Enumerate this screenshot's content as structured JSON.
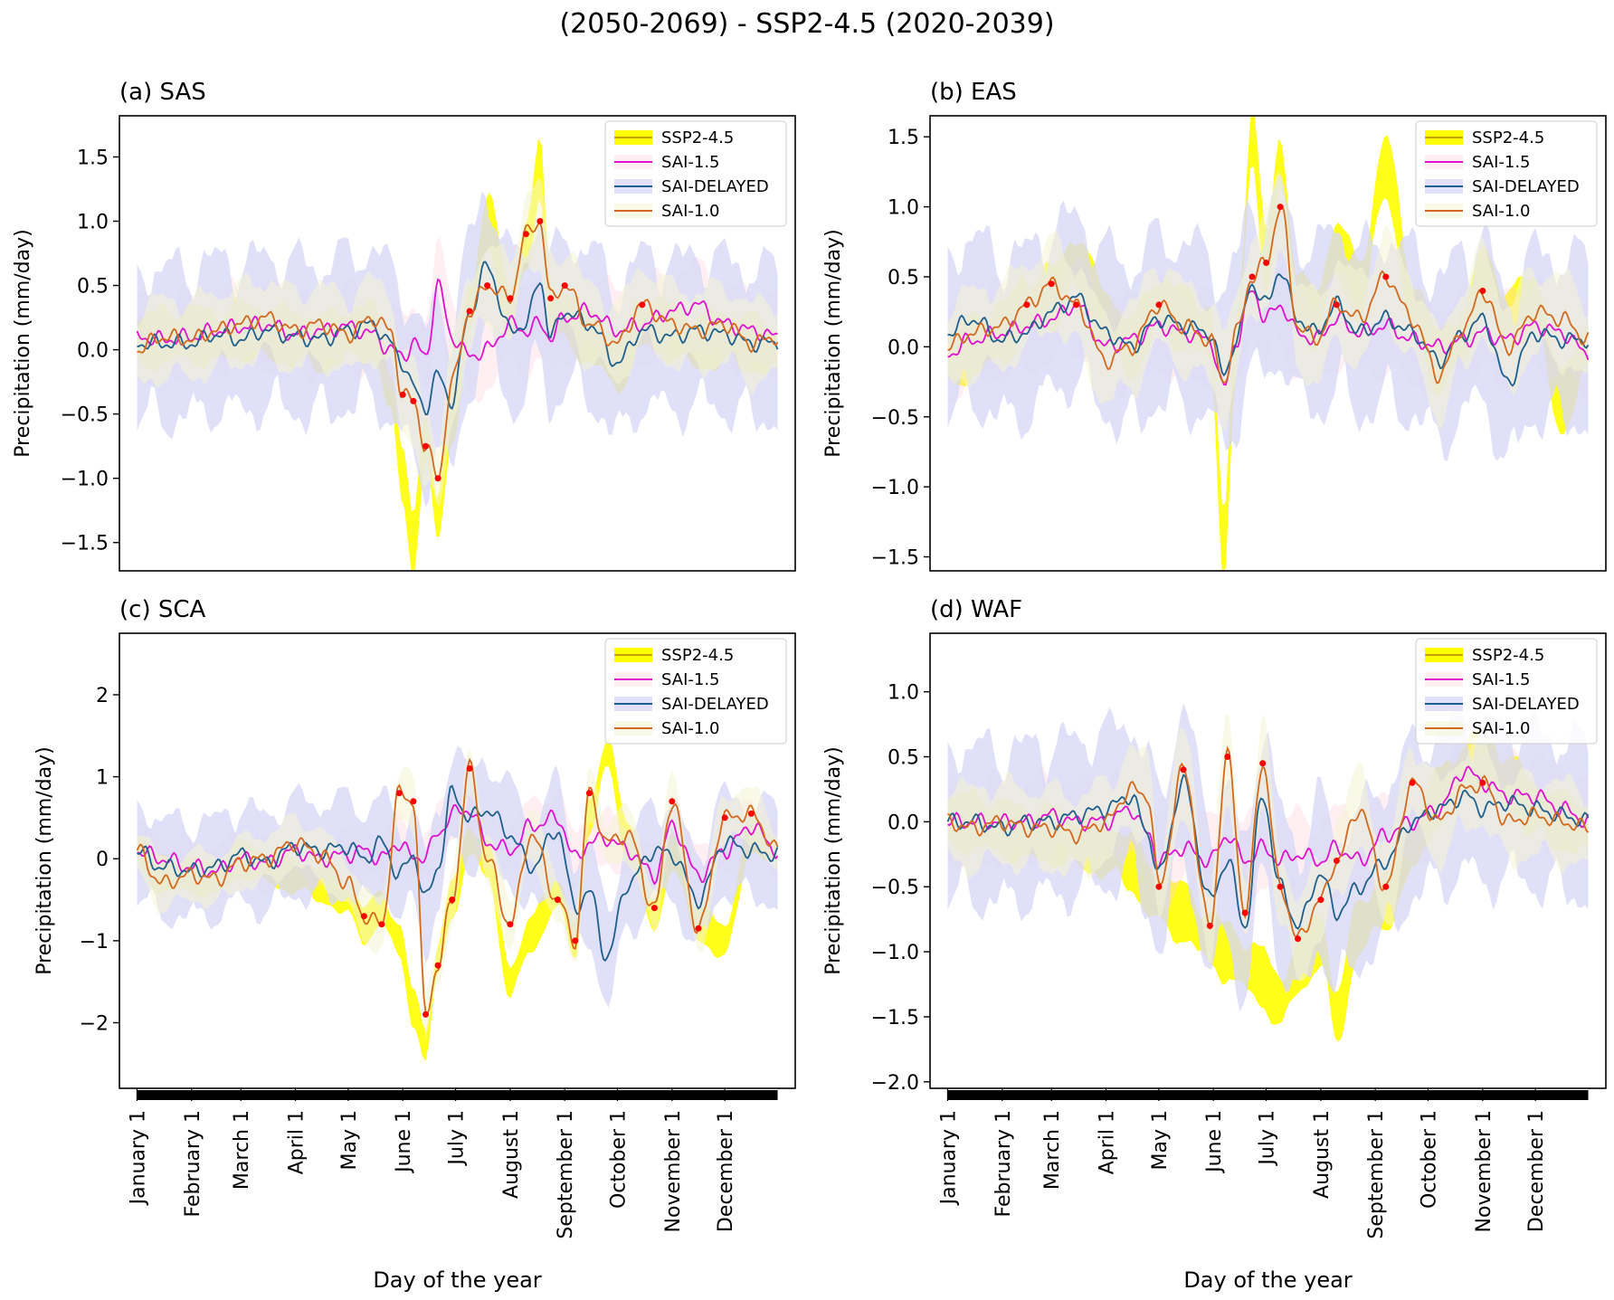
{
  "figure_title": "(2050-2069) - SSP2-4.5 (2020-2039)",
  "colors": {
    "ssp": "#ffff00",
    "sai15": "#e010d0",
    "saidelayed": "#1f5f8b",
    "sai10": "#d2691e",
    "marker": "#ff0000",
    "band_ssp": "#ffff00",
    "band_sai15": "#ffd0dc",
    "band_saidelayed": "#d8d8f6",
    "band_sai10": "#f4f4d4"
  },
  "chart_data": [
    {
      "id": "SAS",
      "type": "line",
      "title": "(a) SAS",
      "xlabel": "",
      "ylabel": "Precipitation (mm/day)",
      "ylim": [
        -1.72,
        1.82
      ],
      "yticks": [
        -1.5,
        -1.0,
        -0.5,
        0.0,
        0.5,
        1.0,
        1.5
      ],
      "ytick_labels": [
        "−1.5",
        "−1.0",
        "−0.5",
        "0.0",
        "0.5",
        "1.0",
        "1.5"
      ],
      "legend": [
        "SSP2-4.5",
        "SAI-1.5",
        "SAI-DELAYED",
        "SAI-1.0"
      ],
      "legend_loc": "upper right",
      "x": [
        1,
        15,
        32,
        46,
        60,
        74,
        91,
        105,
        121,
        135,
        145,
        152,
        158,
        165,
        172,
        180,
        190,
        200,
        213,
        222,
        230,
        236,
        244,
        258,
        274,
        288,
        305,
        319,
        335,
        350,
        365
      ],
      "series": [
        {
          "name": "SSP2-4.5",
          "values": [
            0.05,
            0.1,
            0.12,
            0.1,
            0.15,
            0.12,
            0.1,
            0.05,
            0.12,
            0.15,
            -0.3,
            -1.0,
            -1.5,
            -0.7,
            -1.3,
            -0.5,
            0.3,
            1.0,
            0.3,
            0.8,
            1.4,
            0.3,
            0.25,
            0.1,
            -0.1,
            0.2,
            0.15,
            0.05,
            0.1,
            0.05,
            0.0
          ]
        },
        {
          "name": "SAI-1.5",
          "values": [
            0.1,
            0.08,
            0.1,
            0.15,
            0.18,
            0.2,
            0.12,
            0.15,
            0.18,
            0.12,
            0.0,
            -0.05,
            0.05,
            -0.05,
            0.5,
            0.1,
            -0.05,
            0.0,
            0.2,
            0.15,
            0.2,
            0.1,
            0.25,
            0.3,
            0.15,
            0.2,
            0.3,
            0.35,
            0.2,
            0.15,
            0.1
          ]
        },
        {
          "name": "SAI-DELAYED",
          "values": [
            0.05,
            0.05,
            0.05,
            0.12,
            0.08,
            0.15,
            0.1,
            0.08,
            0.15,
            0.2,
            0.05,
            -0.1,
            -0.3,
            -0.45,
            -0.2,
            -0.4,
            0.3,
            0.65,
            0.15,
            0.2,
            0.55,
            0.1,
            0.3,
            0.2,
            -0.1,
            0.15,
            0.1,
            0.15,
            0.12,
            0.05,
            0.05
          ]
        },
        {
          "name": "SAI-1.0",
          "values": [
            0.0,
            0.1,
            0.08,
            0.15,
            0.2,
            0.25,
            0.15,
            0.2,
            0.12,
            0.25,
            0.15,
            -0.35,
            -0.4,
            -0.75,
            -1.0,
            -0.25,
            0.3,
            0.5,
            0.4,
            0.9,
            1.0,
            0.4,
            0.5,
            0.2,
            0.05,
            0.35,
            0.2,
            0.15,
            0.2,
            0.05,
            0.1
          ]
        }
      ]
    },
    {
      "id": "EAS",
      "type": "line",
      "title": "(b) EAS",
      "xlabel": "",
      "ylabel": "Precipitation (mm/day)",
      "ylim": [
        -1.6,
        1.65
      ],
      "yticks": [
        -1.5,
        -1.0,
        -0.5,
        0.0,
        0.5,
        1.0,
        1.5
      ],
      "ytick_labels": [
        "−1.5",
        "−1.0",
        "−0.5",
        "0.0",
        "0.5",
        "1.0",
        "1.5"
      ],
      "legend": [
        "SSP2-4.5",
        "SAI-1.5",
        "SAI-DELAYED",
        "SAI-1.0"
      ],
      "legend_loc": "upper right",
      "x": [
        1,
        15,
        32,
        46,
        60,
        74,
        91,
        105,
        121,
        135,
        150,
        158,
        165,
        174,
        182,
        190,
        200,
        210,
        222,
        235,
        250,
        265,
        280,
        295,
        305,
        319,
        335,
        350,
        365
      ],
      "series": [
        {
          "name": "SSP2-4.5",
          "values": [
            -0.1,
            0.0,
            0.1,
            0.3,
            0.35,
            0.6,
            0.2,
            0.0,
            0.3,
            0.2,
            0.1,
            -1.4,
            0.0,
            1.5,
            0.6,
            1.3,
            0.3,
            0.2,
            0.7,
            0.4,
            1.3,
            0.3,
            -0.1,
            0.1,
            0.5,
            0.2,
            0.3,
            -0.4,
            0.0
          ]
        },
        {
          "name": "SAI-1.5",
          "values": [
            -0.05,
            0.05,
            0.1,
            0.15,
            0.2,
            0.3,
            0.0,
            0.05,
            0.15,
            0.1,
            0.05,
            -0.3,
            0.05,
            0.4,
            0.2,
            0.3,
            0.1,
            0.05,
            0.2,
            0.1,
            0.15,
            0.05,
            0.0,
            0.05,
            0.1,
            0.05,
            0.15,
            0.1,
            -0.05
          ]
        },
        {
          "name": "SAI-DELAYED",
          "values": [
            0.1,
            0.2,
            0.05,
            0.1,
            0.25,
            0.35,
            0.1,
            0.0,
            0.2,
            0.15,
            0.1,
            -0.2,
            0.05,
            0.45,
            0.3,
            0.55,
            0.2,
            0.1,
            0.3,
            0.1,
            0.2,
            0.1,
            -0.1,
            0.1,
            0.2,
            -0.25,
            0.1,
            0.05,
            0.05
          ]
        },
        {
          "name": "SAI-1.0",
          "values": [
            0.0,
            0.1,
            0.15,
            0.3,
            0.45,
            0.3,
            -0.1,
            0.0,
            0.3,
            0.15,
            0.05,
            -0.25,
            0.1,
            0.5,
            0.6,
            1.0,
            0.15,
            0.05,
            0.3,
            0.2,
            0.5,
            0.2,
            -0.2,
            0.15,
            0.4,
            0.0,
            0.25,
            0.2,
            0.05
          ]
        }
      ]
    },
    {
      "id": "SCA",
      "type": "line",
      "title": "(c) SCA",
      "xlabel": "Day of the year",
      "ylabel": "Precipitation (mm/day)",
      "ylim": [
        -2.8,
        2.75
      ],
      "yticks": [
        -2,
        -1,
        0,
        1,
        2
      ],
      "ytick_labels": [
        "−2",
        "−1",
        "0",
        "1",
        "2"
      ],
      "legend": [
        "SSP2-4.5",
        "SAI-1.5",
        "SAI-DELAYED",
        "SAI-1.0"
      ],
      "legend_loc": "upper right",
      "x": [
        1,
        15,
        32,
        46,
        60,
        74,
        91,
        105,
        121,
        130,
        140,
        150,
        158,
        165,
        172,
        180,
        190,
        200,
        213,
        225,
        240,
        250,
        258,
        268,
        280,
        295,
        305,
        320,
        335,
        350,
        365
      ],
      "series": [
        {
          "name": "SSP2-4.5",
          "values": [
            0.1,
            -0.2,
            -0.2,
            -0.25,
            0.0,
            -0.1,
            -0.2,
            -0.3,
            -0.5,
            -0.8,
            -0.6,
            -1.0,
            -1.8,
            -2.3,
            -1.2,
            -0.5,
            0.2,
            0.0,
            -1.5,
            -0.9,
            -0.4,
            -1.0,
            0.5,
            1.3,
            0.2,
            -0.7,
            0.1,
            -0.8,
            -1.0,
            0.3,
            0.1
          ]
        },
        {
          "name": "SAI-1.5",
          "values": [
            0.1,
            0.0,
            -0.1,
            -0.15,
            0.0,
            -0.05,
            0.1,
            0.0,
            0.05,
            0.1,
            0.0,
            0.2,
            0.0,
            0.05,
            0.3,
            0.55,
            0.6,
            0.2,
            0.1,
            0.4,
            0.5,
            0.0,
            0.2,
            0.25,
            0.1,
            -0.2,
            0.4,
            -0.2,
            0.1,
            0.4,
            0.1
          ]
        },
        {
          "name": "SAI-DELAYED",
          "values": [
            0.1,
            -0.1,
            -0.15,
            -0.1,
            0.05,
            -0.05,
            0.15,
            0.1,
            0.15,
            0.0,
            0.2,
            -0.2,
            0.05,
            -0.5,
            -0.1,
            0.8,
            0.5,
            0.6,
            0.3,
            -0.1,
            0.35,
            -0.6,
            -0.4,
            -1.2,
            -0.3,
            0.1,
            0.05,
            -0.5,
            0.2,
            0.1,
            0.05
          ]
        },
        {
          "name": "SAI-1.0",
          "values": [
            0.1,
            -0.3,
            -0.2,
            -0.25,
            -0.05,
            0.0,
            0.2,
            0.05,
            -0.3,
            -0.7,
            -0.8,
            0.8,
            0.7,
            -1.9,
            -1.3,
            -0.5,
            1.1,
            0.0,
            -0.8,
            0.3,
            -0.5,
            -1.0,
            0.8,
            0.2,
            0.3,
            -0.6,
            0.7,
            -0.85,
            0.5,
            0.55,
            0.1
          ]
        }
      ]
    },
    {
      "id": "WAF",
      "type": "line",
      "title": "(d) WAF",
      "xlabel": "Day of the year",
      "ylabel": "Precipitation (mm/day)",
      "ylim": [
        -2.05,
        1.45
      ],
      "yticks": [
        -2.0,
        -1.5,
        -1.0,
        -0.5,
        0.0,
        0.5,
        1.0
      ],
      "ytick_labels": [
        "−2.0",
        "−1.5",
        "−1.0",
        "−0.5",
        "0.0",
        "0.5",
        "1.0"
      ],
      "legend": [
        "SSP2-4.5",
        "SAI-1.5",
        "SAI-DELAYED",
        "SAI-1.0"
      ],
      "legend_loc": "upper right",
      "x": [
        1,
        15,
        32,
        46,
        60,
        74,
        91,
        105,
        115,
        121,
        135,
        150,
        160,
        170,
        180,
        190,
        200,
        213,
        222,
        235,
        250,
        265,
        280,
        295,
        305,
        319,
        335,
        350,
        365
      ],
      "series": [
        {
          "name": "SSP2-4.5",
          "values": [
            0.0,
            0.0,
            -0.05,
            -0.1,
            -0.1,
            -0.15,
            -0.2,
            -0.3,
            -0.5,
            -0.6,
            -0.7,
            -0.9,
            -1.0,
            -1.1,
            -1.2,
            -1.4,
            -1.1,
            -0.9,
            -1.5,
            -0.8,
            -0.6,
            -0.2,
            0.2,
            0.4,
            0.5,
            0.3,
            0.1,
            0.0,
            -0.05
          ]
        },
        {
          "name": "SAI-1.5",
          "values": [
            0.0,
            0.0,
            0.0,
            0.0,
            0.05,
            0.0,
            0.0,
            0.1,
            -0.1,
            -0.3,
            -0.2,
            -0.3,
            -0.1,
            -0.3,
            -0.2,
            -0.3,
            -0.25,
            -0.3,
            -0.2,
            -0.3,
            -0.1,
            0.0,
            0.1,
            0.4,
            0.3,
            0.2,
            0.2,
            0.1,
            0.0
          ]
        },
        {
          "name": "SAI-DELAYED",
          "values": [
            0.0,
            0.0,
            -0.05,
            0.0,
            0.0,
            0.05,
            0.1,
            0.2,
            -0.1,
            -0.4,
            0.3,
            -0.6,
            -0.3,
            -0.8,
            0.2,
            -0.5,
            -0.8,
            -0.4,
            -0.7,
            -0.5,
            -0.3,
            0.0,
            0.1,
            0.2,
            0.1,
            0.15,
            0.1,
            0.05,
            0.0
          ]
        },
        {
          "name": "SAI-1.0",
          "values": [
            0.0,
            -0.05,
            0.0,
            -0.05,
            -0.05,
            -0.1,
            0.0,
            0.25,
            0.2,
            -0.5,
            0.4,
            -0.8,
            0.5,
            -0.7,
            0.45,
            -0.5,
            -0.9,
            -0.6,
            -0.3,
            0.1,
            -0.5,
            0.3,
            0.0,
            0.25,
            0.3,
            0.0,
            0.05,
            0.0,
            -0.05
          ]
        }
      ]
    }
  ],
  "month_ticks": [
    {
      "label": "January 1",
      "day": 1
    },
    {
      "label": "February 1",
      "day": 32
    },
    {
      "label": "March 1",
      "day": 60
    },
    {
      "label": "April 1",
      "day": 91
    },
    {
      "label": "May 1",
      "day": 121
    },
    {
      "label": "June 1",
      "day": 152
    },
    {
      "label": "July 1",
      "day": 182
    },
    {
      "label": "August 1",
      "day": 213
    },
    {
      "label": "September 1",
      "day": 244
    },
    {
      "label": "October 1",
      "day": 274
    },
    {
      "label": "November 1",
      "day": 305
    },
    {
      "label": "December 1",
      "day": 335
    }
  ]
}
